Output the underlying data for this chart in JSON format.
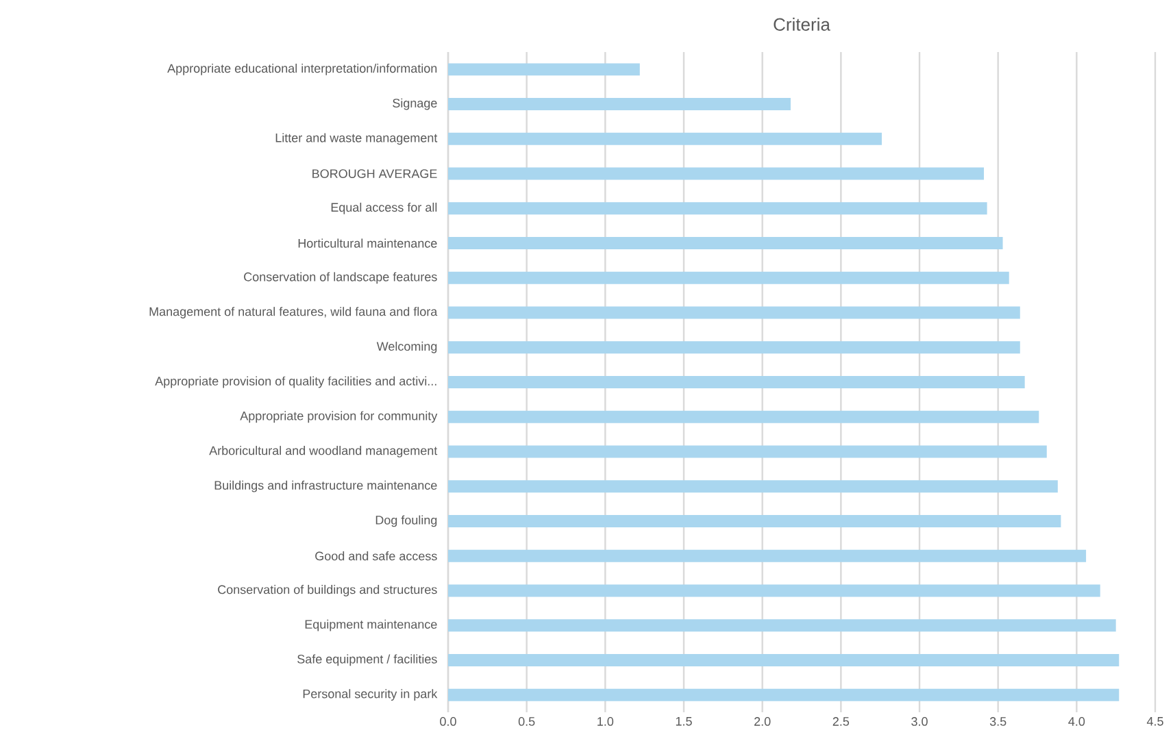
{
  "chart_data": {
    "type": "bar",
    "orientation": "horizontal",
    "title": "Criteria",
    "categories": [
      "Appropriate educational interpretation/information",
      "Signage",
      "Litter and waste management",
      "BOROUGH AVERAGE",
      "Equal access for all",
      "Horticultural maintenance",
      "Conservation of landscape features",
      "Management of natural features, wild fauna and flora",
      "Welcoming",
      "Appropriate provision of quality facilities and activi...",
      "Appropriate provision for community",
      "Arboricultural and woodland management",
      "Buildings and infrastructure maintenance",
      "Dog fouling",
      "Good and safe access",
      "Conservation of buildings and structures",
      "Equipment maintenance",
      "Safe equipment / facilities",
      "Personal security in park"
    ],
    "values": [
      1.22,
      2.18,
      2.76,
      3.41,
      3.43,
      3.53,
      3.57,
      3.64,
      3.64,
      3.67,
      3.76,
      3.81,
      3.88,
      3.9,
      4.06,
      4.15,
      4.25,
      4.27,
      4.27
    ],
    "color": "#a9d6ef",
    "xlim": [
      0,
      4.5
    ],
    "xticks": [
      {
        "value": 0,
        "label": "0.0"
      },
      0.5,
      {
        "value": 1,
        "label": "1.0"
      },
      1.5,
      {
        "value": 2,
        "label": "2.0"
      },
      2.5,
      {
        "value": 3,
        "label": "3.0"
      },
      3.5,
      {
        "value": 4,
        "label": "4.0"
      },
      4.5
    ],
    "grid": "x"
  }
}
